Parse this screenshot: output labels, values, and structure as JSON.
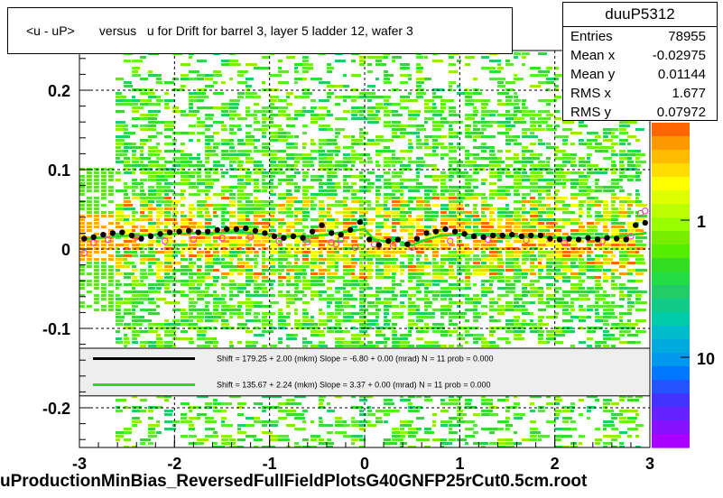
{
  "title": "<u - uP>       versus   u for Drift for barrel 3, layer 5 ladder 12, wafer 3",
  "footer": "uProductionMinBias_ReversedFullFieldPlotsG40GNFP25rCut0.5cm.root",
  "stats": {
    "name": "duuP5312",
    "rows": [
      {
        "k": "Entries",
        "v": "78955"
      },
      {
        "k": "Mean x",
        "v": "-0.02975"
      },
      {
        "k": "Mean y",
        "v": "0.01144"
      },
      {
        "k": "RMS x",
        "v": "1.677"
      },
      {
        "k": "RMS y",
        "v": "0.07972"
      }
    ]
  },
  "colorbar": {
    "tick_labels": [
      "10",
      "1"
    ]
  },
  "colors": {
    "black_series": "#000000",
    "green_series": "#22dd22",
    "open_markers": "#ff44aa"
  },
  "chart_data": {
    "type": "scatter",
    "xlim": [
      -3,
      3
    ],
    "ylim": [
      -0.25,
      0.25
    ],
    "xticks": [
      -3,
      -2,
      -1,
      0,
      1,
      2,
      3
    ],
    "yticks": [
      0.2,
      0.1,
      0,
      -0.1,
      -0.2
    ],
    "ytick_labels": [
      "0.2",
      "0.1",
      "0",
      "-0.1",
      "-0.2"
    ],
    "grid": true,
    "legend": {
      "position": "bottom",
      "entries": [
        {
          "text": "Shift =    179.25 + 2.00 (mkm) Slope =    -6.80 + 0.00 (mrad)  N = 11 prob = 0.000",
          "color": "#000000"
        },
        {
          "text": "Shift =    135.67 + 2.24 (mkm) Slope =     3.37 + 0.00 (mrad)  N = 11 prob = 0.000",
          "color": "#22dd22"
        }
      ]
    },
    "series": [
      {
        "x": [
          -2.95,
          -2.85,
          -2.75,
          -2.65,
          -2.55,
          -2.45,
          -2.35,
          -2.25,
          -2.15,
          -2.05,
          -1.95,
          -1.85,
          -1.75,
          -1.65,
          -1.55,
          -1.45,
          -1.35,
          -1.25,
          -1.15,
          -1.05,
          -0.95,
          -0.85,
          -0.75,
          -0.65,
          -0.55,
          -0.45,
          -0.35,
          -0.25,
          -0.15,
          -0.05,
          0.05,
          0.15,
          0.25,
          0.35,
          0.45,
          0.55,
          0.65,
          0.75,
          0.85,
          0.95,
          1.05,
          1.15,
          1.25,
          1.35,
          1.45,
          1.55,
          1.65,
          1.75,
          1.85,
          1.95,
          2.05,
          2.15,
          2.25,
          2.35,
          2.45,
          2.55,
          2.65,
          2.75,
          2.85,
          2.95
        ],
        "y": [
          0.013,
          0.015,
          0.018,
          0.02,
          0.021,
          0.017,
          0.013,
          0.016,
          0.019,
          0.021,
          0.022,
          0.023,
          0.021,
          0.022,
          0.024,
          0.025,
          0.025,
          0.026,
          0.023,
          0.02,
          0.016,
          0.014,
          0.016,
          0.014,
          0.022,
          0.03,
          0.02,
          0.018,
          0.024,
          0.034,
          0.012,
          0.005,
          0.01,
          0.012,
          0.006,
          0.013,
          0.02,
          0.022,
          0.025,
          0.022,
          0.019,
          0.016,
          0.015,
          0.017,
          0.017,
          0.018,
          0.016,
          0.017,
          0.017,
          0.013,
          0.012,
          0.013,
          0.012,
          0.014,
          0.012,
          0.014,
          0.013,
          0.012,
          0.03,
          0.033
        ]
      },
      {
        "x": [
          -2.95,
          -2.8,
          -2.6,
          -2.4,
          -2.2,
          -2.0,
          -1.8,
          -1.6,
          -1.4,
          -1.2,
          -1.0,
          -0.8,
          -0.6,
          -0.4,
          -0.2,
          0.0,
          0.1,
          0.2,
          0.3,
          0.4,
          0.5,
          0.6,
          0.8,
          1.0,
          1.2,
          1.4,
          1.6,
          1.8,
          2.0,
          2.2,
          2.4,
          2.6,
          2.8,
          2.95
        ],
        "y": [
          0.012,
          0.014,
          0.016,
          0.017,
          0.018,
          0.019,
          0.02,
          0.02,
          0.021,
          0.02,
          0.018,
          0.016,
          0.016,
          0.018,
          0.022,
          0.025,
          0.012,
          0.01,
          0.012,
          0.008,
          0.005,
          0.01,
          0.017,
          0.018,
          0.018,
          0.017,
          0.016,
          0.016,
          0.015,
          0.014,
          0.014,
          0.015,
          0.018,
          0.02
        ]
      },
      {
        "x": [
          -2.95,
          -2.85,
          -2.7,
          -2.4,
          -2.1,
          -1.8,
          -1.5,
          -1.2,
          -0.9,
          -0.6,
          -0.35,
          -0.3,
          -0.25,
          -0.1,
          0.1,
          0.3,
          0.5,
          0.9,
          1.3,
          1.7,
          2.1,
          2.5,
          2.8,
          2.9,
          2.95
        ],
        "y": [
          -0.005,
          0.008,
          0.012,
          0.015,
          0.01,
          0.012,
          0.014,
          0.015,
          0.01,
          0.009,
          0.008,
          0.006,
          0.012,
          0.002,
          0.006,
          0.004,
          0.002,
          0.01,
          0.012,
          0.011,
          0.008,
          0.01,
          0.016,
          0.045,
          0.048
        ]
      }
    ]
  }
}
